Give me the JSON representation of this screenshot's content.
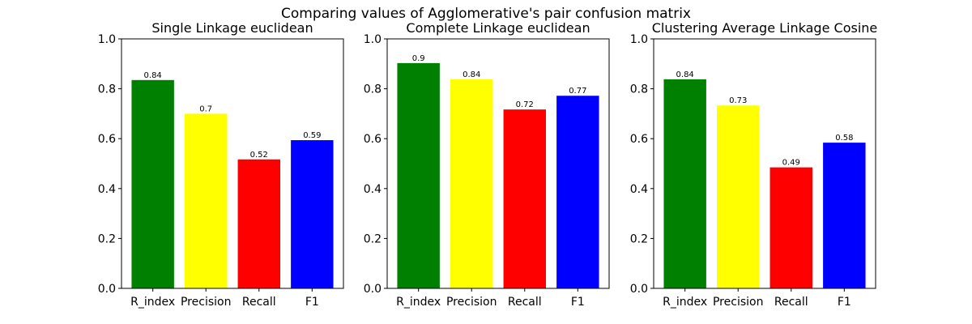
{
  "suptitle": "Comparing values of Agglomerative's pair confusion matrix",
  "chart_data": [
    {
      "type": "bar",
      "title": "Single Linkage euclidean",
      "xlabel": "",
      "ylabel": "",
      "categories": [
        "R_index",
        "Precision",
        "Recall",
        "F1"
      ],
      "values": [
        0.835,
        0.7,
        0.517,
        0.594
      ],
      "data_labels": [
        "0.84",
        "0.7",
        "0.52",
        "0.59"
      ],
      "colors": [
        "#008000",
        "#ffff00",
        "#ff0000",
        "#0000ff"
      ],
      "ylim": [
        0,
        1.0
      ],
      "yticks": [
        "0.0",
        "0.2",
        "0.4",
        "0.6",
        "0.8",
        "1.0"
      ],
      "grid": false
    },
    {
      "type": "bar",
      "title": "Complete Linkage euclidean",
      "xlabel": "",
      "ylabel": "",
      "categories": [
        "R_index",
        "Precision",
        "Recall",
        "F1"
      ],
      "values": [
        0.903,
        0.838,
        0.717,
        0.772
      ],
      "data_labels": [
        "0.9",
        "0.84",
        "0.72",
        "0.77"
      ],
      "colors": [
        "#008000",
        "#ffff00",
        "#ff0000",
        "#0000ff"
      ],
      "ylim": [
        0,
        1.0
      ],
      "yticks": [
        "0.0",
        "0.2",
        "0.4",
        "0.6",
        "0.8",
        "1.0"
      ],
      "grid": false
    },
    {
      "type": "bar",
      "title": "Clustering Average Linkage Cosine",
      "xlabel": "",
      "ylabel": "",
      "categories": [
        "R_index",
        "Precision",
        "Recall",
        "F1"
      ],
      "values": [
        0.838,
        0.733,
        0.485,
        0.584
      ],
      "data_labels": [
        "0.84",
        "0.73",
        "0.49",
        "0.58"
      ],
      "colors": [
        "#008000",
        "#ffff00",
        "#ff0000",
        "#0000ff"
      ],
      "ylim": [
        0,
        1.0
      ],
      "yticks": [
        "0.0",
        "0.2",
        "0.4",
        "0.6",
        "0.8",
        "1.0"
      ],
      "grid": false
    }
  ]
}
